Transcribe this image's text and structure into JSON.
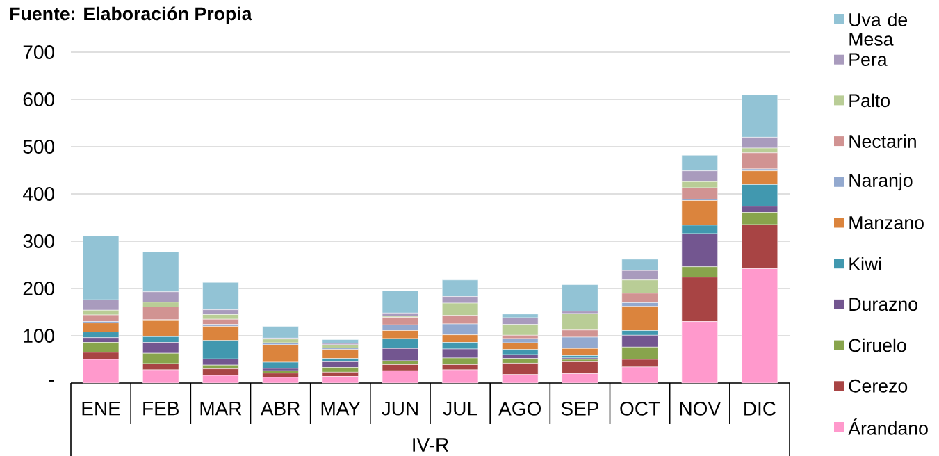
{
  "chart_data": {
    "type": "bar",
    "stacked": true,
    "annotations": [
      "**Fuente: Elaboración Propia**"
    ],
    "xlabel": "IV-R",
    "categories": [
      "ENE",
      "FEB",
      "MAR",
      "ABR",
      "MAY",
      "JUN",
      "JUL",
      "AGO",
      "SEP",
      "OCT",
      "NOV",
      "DIC"
    ],
    "ylim": [
      0,
      700
    ],
    "yticks": [
      {
        "value": 0,
        "label": "-"
      },
      100,
      200,
      300,
      400,
      500,
      600,
      700
    ],
    "grid": "y",
    "legend": "right",
    "series": [
      {
        "name": "Árandano",
        "color": "#ff99cc",
        "values": [
          50,
          28,
          16,
          12,
          14,
          26,
          28,
          18,
          20,
          34,
          130,
          242
        ]
      },
      {
        "name": "Cerezo",
        "color": "#a84444",
        "values": [
          15,
          13,
          14,
          9,
          9,
          13,
          11,
          24,
          25,
          16,
          94,
          93
        ]
      },
      {
        "name": "Ciruelo",
        "color": "#88a44c",
        "values": [
          21,
          22,
          8,
          5,
          10,
          8,
          14,
          10,
          5,
          26,
          22,
          26
        ]
      },
      {
        "name": "Durazno",
        "color": "#735690",
        "values": [
          10,
          23,
          13,
          5,
          12,
          26,
          19,
          8,
          3,
          25,
          70,
          13
        ]
      },
      {
        "name": "Kiwi",
        "color": "#4198af",
        "values": [
          12,
          12,
          39,
          13,
          7,
          21,
          14,
          11,
          5,
          10,
          18,
          46
        ]
      },
      {
        "name": "Manzano",
        "color": "#db843d",
        "values": [
          19,
          34,
          30,
          37,
          19,
          17,
          16,
          14,
          15,
          51,
          52,
          29
        ]
      },
      {
        "name": "Naranjo",
        "color": "#93a9cf",
        "values": [
          3,
          2,
          4,
          4,
          3,
          12,
          23,
          9,
          24,
          8,
          3,
          4
        ]
      },
      {
        "name": "Nectarin",
        "color": "#d19392",
        "values": [
          14,
          27,
          11,
          null,
          null,
          16,
          18,
          7,
          15,
          20,
          24,
          34
        ]
      },
      {
        "name": "Palto",
        "color": "#b9cd96",
        "values": [
          10,
          10,
          10,
          8,
          7,
          2,
          26,
          23,
          35,
          28,
          13,
          10
        ]
      },
      {
        "name": "Pera",
        "color": "#a99bbd",
        "values": [
          22,
          22,
          10,
          2,
          3,
          7,
          14,
          14,
          5,
          20,
          23,
          23
        ]
      },
      {
        "name": "Uva de Mesa",
        "color": "#92c3d5",
        "values": [
          135,
          85,
          58,
          25,
          8,
          47,
          35,
          8,
          56,
          24,
          33,
          90
        ]
      }
    ]
  }
}
